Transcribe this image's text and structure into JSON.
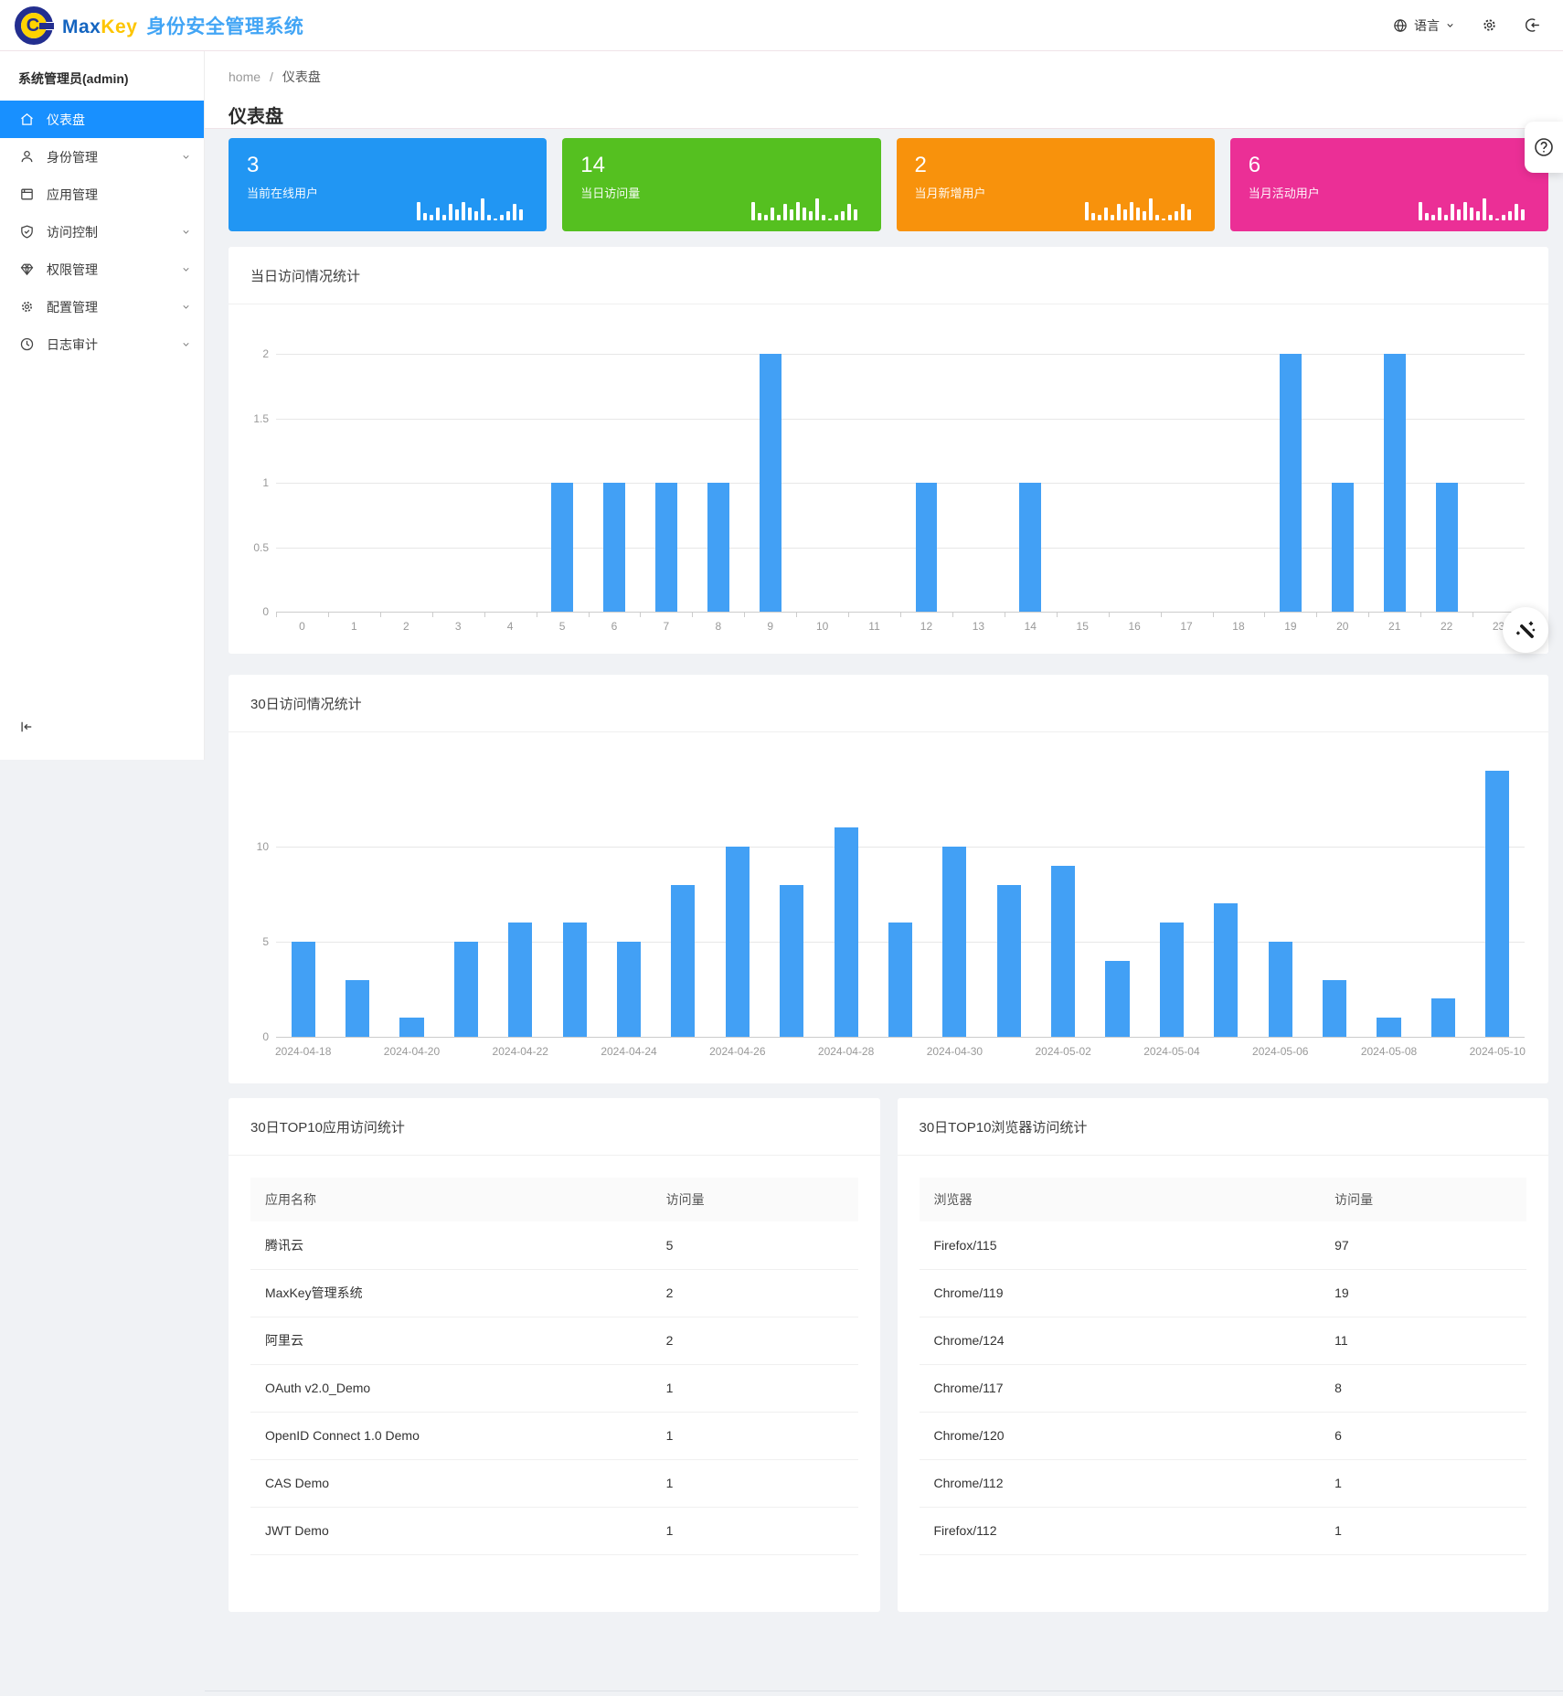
{
  "header": {
    "brand_max": "Max",
    "brand_key": "Key",
    "product_title": "身份安全管理系统",
    "language_label": "语言"
  },
  "sidebar": {
    "user": "系统管理员(admin)",
    "items": [
      {
        "label": "仪表盘",
        "icon": "home-icon",
        "active": true,
        "has_children": false
      },
      {
        "label": "身份管理",
        "icon": "user-icon",
        "active": false,
        "has_children": true
      },
      {
        "label": "应用管理",
        "icon": "app-icon",
        "active": false,
        "has_children": false
      },
      {
        "label": "访问控制",
        "icon": "shield-icon",
        "active": false,
        "has_children": true
      },
      {
        "label": "权限管理",
        "icon": "gem-icon",
        "active": false,
        "has_children": true
      },
      {
        "label": "配置管理",
        "icon": "gear-icon",
        "active": false,
        "has_children": true
      },
      {
        "label": "日志审计",
        "icon": "clock-icon",
        "active": false,
        "has_children": true
      }
    ]
  },
  "breadcrumb": {
    "home": "home",
    "separator": "/",
    "current": "仪表盘"
  },
  "page_title": "仪表盘",
  "cards": [
    {
      "value": "3",
      "label": "当前在线用户",
      "color": "#2196f3"
    },
    {
      "value": "14",
      "label": "当日访问量",
      "color": "#55c020"
    },
    {
      "value": "2",
      "label": "当月新增用户",
      "color": "#f8920c"
    },
    {
      "value": "6",
      "label": "当月活动用户",
      "color": "#eb2f96"
    }
  ],
  "cards_sparkline_heights": [
    20,
    8,
    6,
    14,
    6,
    18,
    12,
    20,
    14,
    10,
    24,
    6,
    2,
    6,
    10,
    18,
    12
  ],
  "colors": {
    "accent": "#1890ff",
    "bar": "#42a0f5",
    "brand_blue": "#1565c0",
    "brand_yellow": "#fdc500",
    "brand_light_blue": "#42a5f5"
  },
  "chart_data": [
    {
      "type": "bar",
      "title": "当日访问情况统计",
      "categories": [
        "0",
        "1",
        "2",
        "3",
        "4",
        "5",
        "6",
        "7",
        "8",
        "9",
        "10",
        "11",
        "12",
        "13",
        "14",
        "15",
        "16",
        "17",
        "18",
        "19",
        "20",
        "21",
        "22",
        "23"
      ],
      "values": [
        0,
        0,
        0,
        0,
        0,
        1,
        1,
        1,
        1,
        2,
        0,
        0,
        1,
        0,
        1,
        0,
        0,
        0,
        0,
        2,
        1,
        2,
        1,
        0
      ],
      "xlabel": "",
      "ylabel": "",
      "ylim": [
        0,
        2
      ],
      "yticks": [
        0,
        0.5,
        1,
        1.5,
        2
      ],
      "label_every": 1,
      "grid": true,
      "legend": "none",
      "bar_color": "#42a0f5"
    },
    {
      "type": "bar",
      "title": "30日访问情况统计",
      "categories": [
        "2024-04-18",
        "2024-04-19",
        "2024-04-20",
        "2024-04-21",
        "2024-04-22",
        "2024-04-23",
        "2024-04-24",
        "2024-04-25",
        "2024-04-26",
        "2024-04-27",
        "2024-04-28",
        "2024-04-29",
        "2024-04-30",
        "2024-05-01",
        "2024-05-02",
        "2024-05-03",
        "2024-05-04",
        "2024-05-05",
        "2024-05-06",
        "2024-05-07",
        "2024-05-08",
        "2024-05-09",
        "2024-05-10"
      ],
      "values": [
        5,
        3,
        1,
        5,
        6,
        6,
        5,
        8,
        10,
        8,
        11,
        6,
        10,
        8,
        9,
        4,
        6,
        7,
        5,
        3,
        1,
        2,
        14
      ],
      "xlabel": "",
      "ylabel": "",
      "ylim": [
        0,
        15
      ],
      "yticks": [
        0,
        5,
        10
      ],
      "label_every": 2,
      "grid": true,
      "legend": "none",
      "bar_color": "#42a0f5"
    }
  ],
  "tables": [
    {
      "title": "30日TOP10应用访问统计",
      "headers": [
        "应用名称",
        "访问量"
      ],
      "rows": [
        [
          "腾讯云",
          "5"
        ],
        [
          "MaxKey管理系统",
          "2"
        ],
        [
          "阿里云",
          "2"
        ],
        [
          "OAuth v2.0_Demo",
          "1"
        ],
        [
          "OpenID Connect 1.0 Demo",
          "1"
        ],
        [
          "CAS Demo",
          "1"
        ],
        [
          "JWT Demo",
          "1"
        ]
      ]
    },
    {
      "title": "30日TOP10浏览器访问统计",
      "headers": [
        "浏览器",
        "访问量"
      ],
      "rows": [
        [
          "Firefox/115",
          "97"
        ],
        [
          "Chrome/119",
          "19"
        ],
        [
          "Chrome/124",
          "11"
        ],
        [
          "Chrome/117",
          "8"
        ],
        [
          "Chrome/120",
          "6"
        ],
        [
          "Chrome/112",
          "1"
        ],
        [
          "Firefox/112",
          "1"
        ]
      ]
    }
  ]
}
